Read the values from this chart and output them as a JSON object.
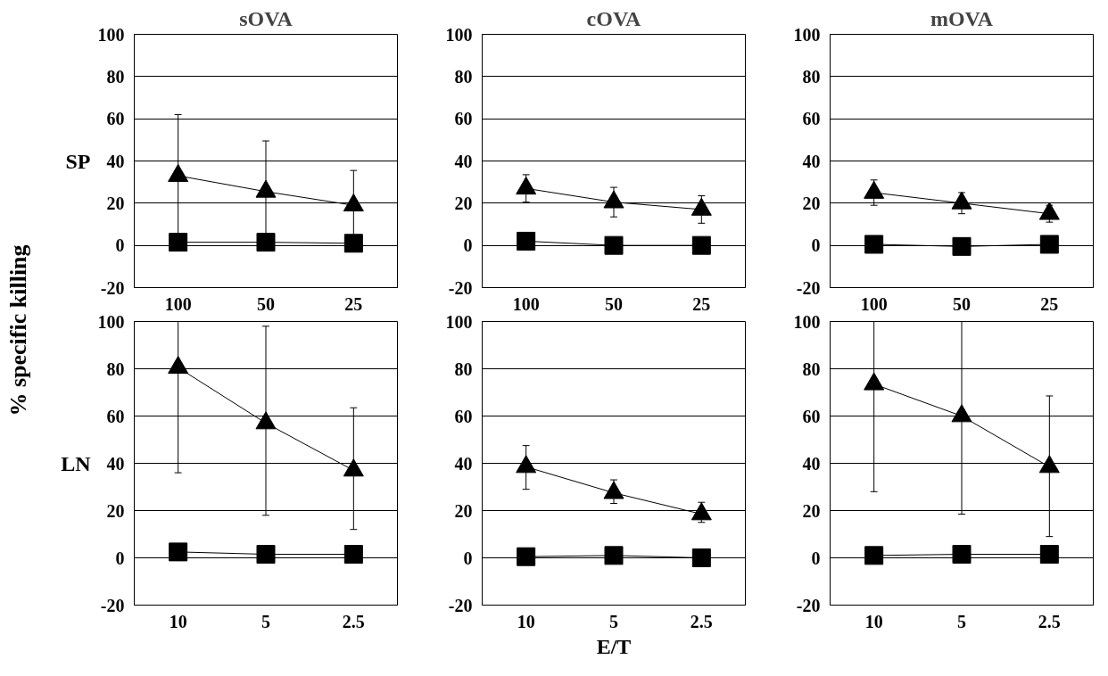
{
  "chart_data": [
    {
      "type": "line",
      "title": "sOVA",
      "ylabel": "SP",
      "annotations": [
        "% specific killing"
      ],
      "categories": [
        "100",
        "50",
        "25"
      ],
      "ylim": [
        -20,
        100
      ],
      "yticks": [
        -20,
        0,
        20,
        40,
        60,
        80,
        100
      ],
      "grid": "y",
      "series": [
        {
          "color": "#000000",
          "marker": "triangle",
          "values": [
            33,
            25.5,
            19
          ],
          "errors": [
            29,
            24,
            16.5
          ]
        },
        {
          "color": "#000000",
          "marker": "square",
          "values": [
            1.5,
            1.5,
            1
          ]
        }
      ]
    },
    {
      "type": "line",
      "title": "cOVA",
      "categories": [
        "100",
        "50",
        "25"
      ],
      "ylim": [
        -20,
        100
      ],
      "yticks": [
        -20,
        0,
        20,
        40,
        60,
        80,
        100
      ],
      "grid": "y",
      "series": [
        {
          "color": "#000000",
          "marker": "triangle",
          "values": [
            27,
            20.5,
            17
          ],
          "errors": [
            6.5,
            7,
            6.5
          ]
        },
        {
          "color": "#000000",
          "marker": "square",
          "values": [
            2,
            0,
            0
          ]
        }
      ]
    },
    {
      "type": "line",
      "title": "mOVA",
      "categories": [
        "100",
        "50",
        "25"
      ],
      "ylim": [
        -20,
        100
      ],
      "yticks": [
        -20,
        0,
        20,
        40,
        60,
        80,
        100
      ],
      "grid": "y",
      "series": [
        {
          "color": "#000000",
          "marker": "triangle",
          "values": [
            25,
            20,
            15
          ],
          "errors": [
            6,
            5,
            4
          ]
        },
        {
          "color": "#000000",
          "marker": "square",
          "values": [
            0.5,
            -0.5,
            0.5
          ]
        }
      ]
    },
    {
      "type": "line",
      "ylabel": "LN",
      "categories": [
        "10",
        "5",
        "2.5"
      ],
      "ylim": [
        -20,
        100
      ],
      "yticks": [
        -20,
        0,
        20,
        40,
        60,
        80,
        100
      ],
      "grid": "y",
      "series": [
        {
          "color": "#000000",
          "marker": "triangle",
          "values": [
            80.5,
            57,
            37
          ],
          "errors": [
            [
              36,
              100
            ],
            [
              18,
              98
            ],
            [
              12,
              63.5
            ]
          ]
        },
        {
          "color": "#000000",
          "marker": "square",
          "values": [
            2.5,
            1.5,
            1.5
          ]
        }
      ]
    },
    {
      "type": "line",
      "xlabel": "E/T",
      "categories": [
        "10",
        "5",
        "2.5"
      ],
      "ylim": [
        -20,
        100
      ],
      "yticks": [
        -20,
        0,
        20,
        40,
        60,
        80,
        100
      ],
      "grid": "y",
      "series": [
        {
          "color": "#000000",
          "marker": "triangle",
          "values": [
            38.5,
            27.5,
            18.5
          ],
          "errors": [
            [
              29,
              47.5
            ],
            [
              23,
              33
            ],
            [
              15,
              23.5
            ]
          ]
        },
        {
          "color": "#000000",
          "marker": "square",
          "values": [
            0.5,
            1,
            0
          ]
        }
      ]
    },
    {
      "type": "line",
      "categories": [
        "10",
        "5",
        "2.5"
      ],
      "ylim": [
        -20,
        100
      ],
      "yticks": [
        -20,
        0,
        20,
        40,
        60,
        80,
        100
      ],
      "grid": "y",
      "series": [
        {
          "color": "#000000",
          "marker": "triangle",
          "values": [
            73.5,
            60,
            38.5
          ],
          "errors": [
            [
              28,
              100
            ],
            [
              18.5,
              100
            ],
            [
              9,
              68.5
            ]
          ]
        },
        {
          "color": "#000000",
          "marker": "square",
          "values": [
            1,
            1.5,
            1.5
          ]
        }
      ]
    }
  ]
}
